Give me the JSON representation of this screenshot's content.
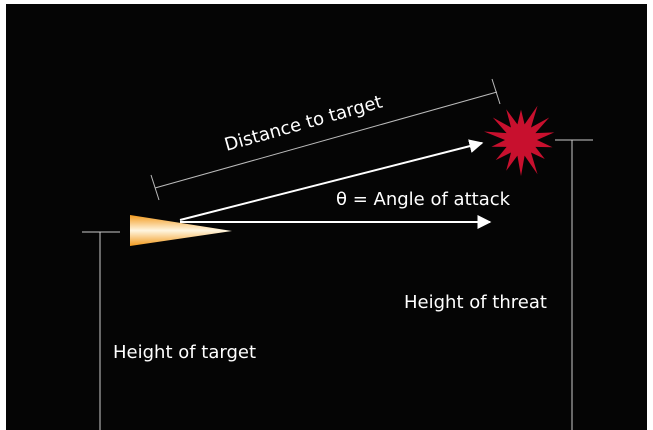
{
  "labels": {
    "distance": "Distance to target",
    "angle": "θ = Angle of attack",
    "threat_height": "Height of threat",
    "target_height": "Height of target"
  }
}
